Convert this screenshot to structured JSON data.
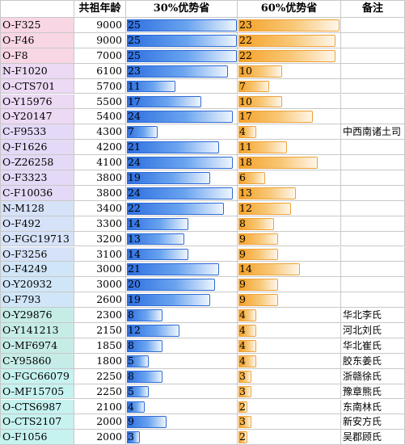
{
  "headers": {
    "name": "",
    "age": "共祖年龄",
    "pct30": "30%优势省",
    "pct60": "60%优势省",
    "note": "备注"
  },
  "colors": {
    "pink": "#f8d6e4",
    "lavender": "#e6d9f6",
    "lightblue": "#d0e6f8",
    "cyan": "#c6f2ef"
  },
  "chart_data": {
    "type": "table",
    "columns": [
      "",
      "共祖年龄",
      "30%优势省",
      "60%优势省",
      "备注"
    ],
    "max_bar": 25,
    "rows": [
      {
        "name": "O-F325",
        "age": "9000",
        "pct30": 25,
        "pct60": 23,
        "note": "",
        "color": "#f8d6e4"
      },
      {
        "name": "O-F46",
        "age": "9000",
        "pct30": 25,
        "pct60": 22,
        "note": "",
        "color": "#f8d6e4"
      },
      {
        "name": "O-F8",
        "age": "7000",
        "pct30": 25,
        "pct60": 22,
        "note": "",
        "color": "#f8d6e4"
      },
      {
        "name": "N-F1020",
        "age": "6100",
        "pct30": 23,
        "pct60": 10,
        "note": "",
        "color": "#ecd9f4"
      },
      {
        "name": "O-CTS701",
        "age": "5700",
        "pct30": 11,
        "pct60": 7,
        "note": "",
        "color": "#ecd9f4"
      },
      {
        "name": "O-Y15976",
        "age": "5500",
        "pct30": 17,
        "pct60": 10,
        "note": "",
        "color": "#ecd9f4"
      },
      {
        "name": "O-Y20147",
        "age": "5400",
        "pct30": 24,
        "pct60": 17,
        "note": "",
        "color": "#ecd9f4"
      },
      {
        "name": "C-F9533",
        "age": "4300",
        "pct30": 7,
        "pct60": 4,
        "note": "中西南诸土司",
        "color": "#e4d9f6"
      },
      {
        "name": "Q-F1626",
        "age": "4200",
        "pct30": 21,
        "pct60": 11,
        "note": "",
        "color": "#e4d9f6"
      },
      {
        "name": "O-Z26258",
        "age": "4100",
        "pct30": 24,
        "pct60": 18,
        "note": "",
        "color": "#e4d9f6"
      },
      {
        "name": "O-F3323",
        "age": "3800",
        "pct30": 19,
        "pct60": 6,
        "note": "",
        "color": "#e4d9f6"
      },
      {
        "name": "C-F10036",
        "age": "3800",
        "pct30": 24,
        "pct60": 13,
        "note": "",
        "color": "#e4d9f6"
      },
      {
        "name": "N-M128",
        "age": "3400",
        "pct30": 22,
        "pct60": 12,
        "note": "",
        "color": "#d6e2f8"
      },
      {
        "name": "O-F492",
        "age": "3300",
        "pct30": 14,
        "pct60": 8,
        "note": "",
        "color": "#d6e2f8"
      },
      {
        "name": "O-FGC19713",
        "age": "3200",
        "pct30": 13,
        "pct60": 9,
        "note": "",
        "color": "#d6e2f8"
      },
      {
        "name": "O-F3256",
        "age": "3100",
        "pct30": 14,
        "pct60": 9,
        "note": "",
        "color": "#d6e2f8"
      },
      {
        "name": "O-F4249",
        "age": "3000",
        "pct30": 21,
        "pct60": 14,
        "note": "",
        "color": "#d0e6f8"
      },
      {
        "name": "O-Y20932",
        "age": "3000",
        "pct30": 20,
        "pct60": 9,
        "note": "",
        "color": "#d0e6f8"
      },
      {
        "name": "O-F793",
        "age": "2600",
        "pct30": 19,
        "pct60": 9,
        "note": "",
        "color": "#d0e6f8"
      },
      {
        "name": "O-Y29876",
        "age": "2300",
        "pct30": 8,
        "pct60": 4,
        "note": "华北李氏",
        "color": "#c6ece8"
      },
      {
        "name": "O-Y141213",
        "age": "2150",
        "pct30": 12,
        "pct60": 4,
        "note": "河北刘氏",
        "color": "#c6ece8"
      },
      {
        "name": "O-MF6974",
        "age": "1850",
        "pct30": 8,
        "pct60": 4,
        "note": "华北崔氏",
        "color": "#c6ece8"
      },
      {
        "name": "C-Y95860",
        "age": "1800",
        "pct30": 5,
        "pct60": 4,
        "note": "胶东姜氏",
        "color": "#c6ece8"
      },
      {
        "name": "O-FGC66079",
        "age": "2250",
        "pct30": 8,
        "pct60": 3,
        "note": "浙赣徐氏",
        "color": "#c6f2ef"
      },
      {
        "name": "O-MF15705",
        "age": "2250",
        "pct30": 5,
        "pct60": 3,
        "note": "豫章熊氏",
        "color": "#c6f2ef"
      },
      {
        "name": "O-CTS6987",
        "age": "2100",
        "pct30": 4,
        "pct60": 2,
        "note": "东南林氏",
        "color": "#c6f2ef"
      },
      {
        "name": "O-CTS2107",
        "age": "2000",
        "pct30": 9,
        "pct60": 3,
        "note": "新安方氏",
        "color": "#c6f2ef"
      },
      {
        "name": "O-F1056",
        "age": "2000",
        "pct30": 3,
        "pct60": 2,
        "note": "吴郡顾氏",
        "color": "#c6f2ef"
      }
    ]
  }
}
